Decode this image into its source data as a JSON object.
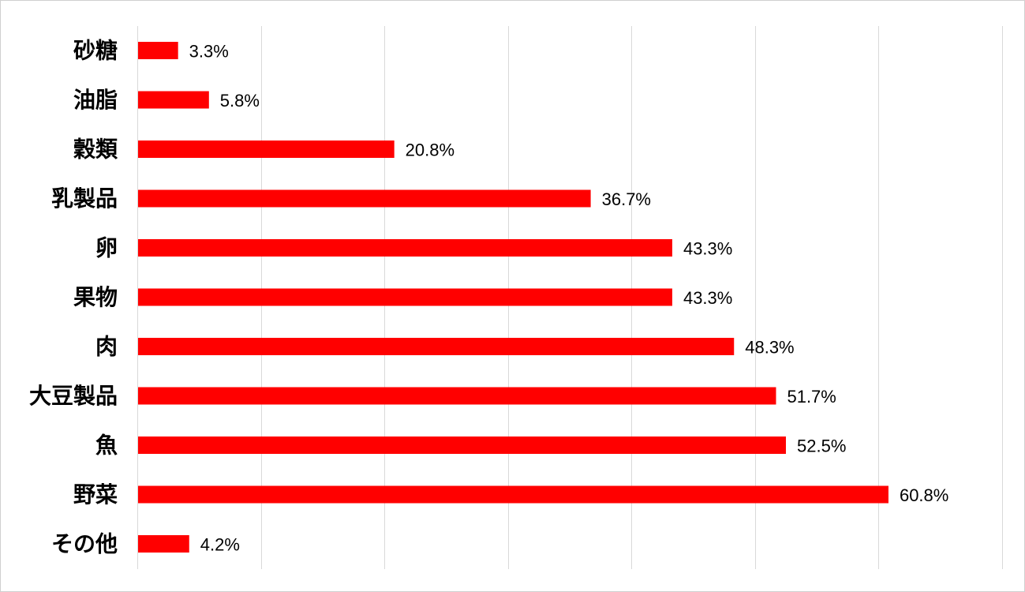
{
  "chart_data": {
    "type": "bar",
    "orientation": "horizontal",
    "categories": [
      "砂糖",
      "油脂",
      "穀類",
      "乳製品",
      "卵",
      "果物",
      "肉",
      "大豆製品",
      "魚",
      "野菜",
      "その他"
    ],
    "values": [
      3.3,
      5.8,
      20.8,
      36.7,
      43.3,
      43.3,
      48.3,
      51.7,
      52.5,
      60.8,
      4.2
    ],
    "value_labels": [
      "3.3%",
      "5.8%",
      "20.8%",
      "36.7%",
      "43.3%",
      "43.3%",
      "48.3%",
      "51.7%",
      "52.5%",
      "60.8%",
      "4.2%"
    ],
    "value_unit": "%",
    "xlim": [
      0,
      70
    ],
    "grid_step": 10,
    "grid": true,
    "bar_color": "#ff0000",
    "grid_color": "#d9d9d9",
    "title": "",
    "xlabel": "",
    "ylabel": ""
  }
}
